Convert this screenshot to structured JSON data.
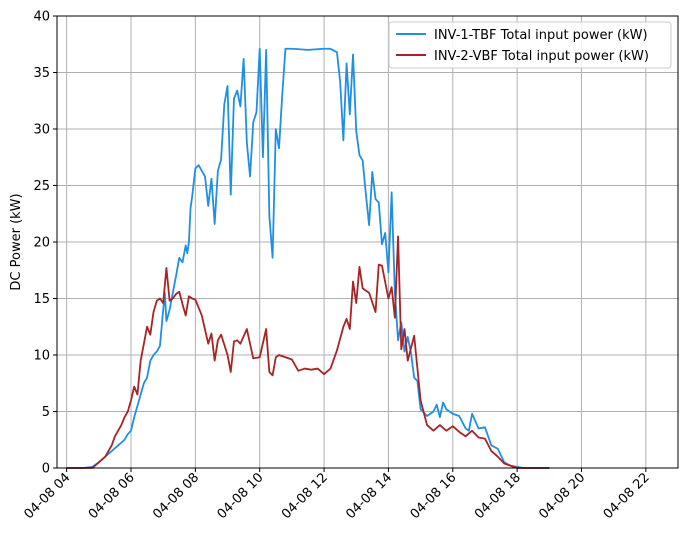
{
  "chart_data": {
    "type": "line",
    "title": "",
    "xlabel": "",
    "ylabel": "DC Power (kW)",
    "xlim": [
      3.7,
      23.0
    ],
    "ylim": [
      0,
      40
    ],
    "grid": true,
    "legend_position": "top-right",
    "x_ticks": [
      {
        "value": 4,
        "label": "04-08 04"
      },
      {
        "value": 6,
        "label": "04-08 06"
      },
      {
        "value": 8,
        "label": "04-08 08"
      },
      {
        "value": 10,
        "label": "04-08 10"
      },
      {
        "value": 12,
        "label": "04-08 12"
      },
      {
        "value": 14,
        "label": "04-08 14"
      },
      {
        "value": 16,
        "label": "04-08 16"
      },
      {
        "value": 18,
        "label": "04-08 18"
      },
      {
        "value": 20,
        "label": "04-08 20"
      },
      {
        "value": 22,
        "label": "04-08 22"
      }
    ],
    "y_ticks": [
      {
        "value": 0,
        "label": "0"
      },
      {
        "value": 5,
        "label": "5"
      },
      {
        "value": 10,
        "label": "10"
      },
      {
        "value": 15,
        "label": "15"
      },
      {
        "value": 20,
        "label": "20"
      },
      {
        "value": 25,
        "label": "25"
      },
      {
        "value": 30,
        "label": "30"
      },
      {
        "value": 35,
        "label": "35"
      },
      {
        "value": 40,
        "label": "40"
      }
    ],
    "series": [
      {
        "name": "INV-1-TBF Total input power (kW)",
        "color": "#1f8fe6",
        "x": [
          4.0,
          4.5,
          4.8,
          5.0,
          5.2,
          5.4,
          5.6,
          5.8,
          5.9,
          6.0,
          6.1,
          6.2,
          6.3,
          6.4,
          6.5,
          6.6,
          6.7,
          6.8,
          6.9,
          7.0,
          7.05,
          7.1,
          7.2,
          7.3,
          7.4,
          7.5,
          7.6,
          7.7,
          7.75,
          7.8,
          7.85,
          7.9,
          8.0,
          8.1,
          8.2,
          8.3,
          8.4,
          8.5,
          8.6,
          8.7,
          8.8,
          8.9,
          9.0,
          9.1,
          9.2,
          9.3,
          9.4,
          9.5,
          9.6,
          9.7,
          9.8,
          9.9,
          10.0,
          10.1,
          10.2,
          10.3,
          10.4,
          10.5,
          10.6,
          10.7,
          10.8,
          10.9,
          11.0,
          11.5,
          12.0,
          12.2,
          12.4,
          12.5,
          12.6,
          12.7,
          12.8,
          12.9,
          13.0,
          13.1,
          13.2,
          13.3,
          13.4,
          13.5,
          13.6,
          13.7,
          13.8,
          13.9,
          14.0,
          14.1,
          14.2,
          14.3,
          14.4,
          14.5,
          14.6,
          14.7,
          14.8,
          14.9,
          15.0,
          15.2,
          15.4,
          15.5,
          15.6,
          15.7,
          15.8,
          16.0,
          16.2,
          16.4,
          16.5,
          16.6,
          16.8,
          17.0,
          17.2,
          17.4,
          17.6,
          17.8,
          18.0,
          18.2,
          18.4,
          18.6,
          18.8,
          19.0
        ],
        "y": [
          0.0,
          0.0,
          0.1,
          0.5,
          1.0,
          1.5,
          2.0,
          2.5,
          3.0,
          3.3,
          4.5,
          5.5,
          6.5,
          7.5,
          8.0,
          9.5,
          10.0,
          10.3,
          10.8,
          14.0,
          15.5,
          13.0,
          14.0,
          15.5,
          17.0,
          18.6,
          18.2,
          19.7,
          19.0,
          20.0,
          23.0,
          24.0,
          26.5,
          26.8,
          26.3,
          25.8,
          23.2,
          25.6,
          21.6,
          26.3,
          27.3,
          32.2,
          33.8,
          24.2,
          32.7,
          33.4,
          32.0,
          36.2,
          28.8,
          25.8,
          30.6,
          31.5,
          37.1,
          27.5,
          37.0,
          22.3,
          18.6,
          30.0,
          28.3,
          33.0,
          37.1,
          37.1,
          37.1,
          37.0,
          37.1,
          37.1,
          36.8,
          34.2,
          29.0,
          35.8,
          31.3,
          36.6,
          29.8,
          27.7,
          27.2,
          24.2,
          21.5,
          26.2,
          23.8,
          23.5,
          19.8,
          20.8,
          17.3,
          24.4,
          15.5,
          11.3,
          12.9,
          10.3,
          11.6,
          10.2,
          8.0,
          7.7,
          5.2,
          4.6,
          5.0,
          5.6,
          4.5,
          5.8,
          5.2,
          4.8,
          4.6,
          3.5,
          3.3,
          4.8,
          3.5,
          3.6,
          2.0,
          1.7,
          0.5,
          0.2,
          0.1,
          0.0,
          0.0,
          0.0,
          0.0,
          0.0
        ]
      },
      {
        "name": "INV-2-VBF Total input power (kW)",
        "color": "#a82325",
        "x": [
          4.0,
          4.5,
          4.8,
          5.0,
          5.2,
          5.4,
          5.5,
          5.6,
          5.7,
          5.8,
          5.9,
          6.0,
          6.1,
          6.2,
          6.3,
          6.4,
          6.5,
          6.6,
          6.7,
          6.8,
          6.9,
          7.0,
          7.1,
          7.2,
          7.3,
          7.4,
          7.5,
          7.6,
          7.7,
          7.8,
          7.9,
          8.0,
          8.2,
          8.4,
          8.5,
          8.6,
          8.7,
          8.8,
          9.0,
          9.1,
          9.2,
          9.3,
          9.4,
          9.6,
          9.8,
          10.0,
          10.2,
          10.3,
          10.4,
          10.5,
          10.6,
          10.8,
          11.0,
          11.2,
          11.4,
          11.6,
          11.8,
          12.0,
          12.2,
          12.4,
          12.6,
          12.7,
          12.8,
          12.9,
          13.0,
          13.1,
          13.2,
          13.4,
          13.6,
          13.7,
          13.8,
          14.0,
          14.1,
          14.2,
          14.3,
          14.4,
          14.5,
          14.6,
          14.8,
          15.0,
          15.2,
          15.4,
          15.6,
          15.8,
          16.0,
          16.2,
          16.4,
          16.6,
          16.8,
          17.0,
          17.2,
          17.4,
          17.6,
          17.8,
          18.0,
          18.2,
          18.4,
          18.6,
          18.8,
          19.0
        ],
        "y": [
          0.0,
          0.0,
          0.0,
          0.5,
          1.0,
          2.0,
          2.8,
          3.3,
          3.8,
          4.5,
          5.0,
          6.0,
          7.2,
          6.5,
          9.5,
          11.0,
          12.5,
          11.8,
          13.8,
          14.8,
          15.0,
          14.6,
          17.7,
          14.8,
          15.0,
          15.4,
          15.6,
          14.5,
          13.5,
          15.2,
          15.0,
          14.9,
          13.5,
          11.0,
          11.9,
          9.5,
          11.3,
          11.8,
          10.0,
          8.5,
          11.2,
          11.3,
          11.0,
          12.3,
          9.7,
          9.8,
          12.3,
          8.5,
          8.2,
          9.8,
          10.0,
          9.8,
          9.6,
          8.6,
          8.8,
          8.7,
          8.8,
          8.3,
          8.8,
          10.4,
          12.5,
          13.2,
          12.3,
          16.5,
          14.6,
          17.8,
          15.9,
          15.5,
          13.8,
          18.0,
          17.9,
          15.0,
          16.0,
          13.3,
          20.5,
          10.5,
          12.3,
          9.5,
          11.7,
          6.0,
          3.8,
          3.3,
          3.8,
          3.3,
          3.7,
          3.2,
          2.8,
          3.3,
          2.7,
          2.6,
          1.5,
          1.0,
          0.4,
          0.2,
          0.0,
          0.0,
          0.0,
          0.0,
          0.0,
          0.0
        ]
      }
    ]
  }
}
